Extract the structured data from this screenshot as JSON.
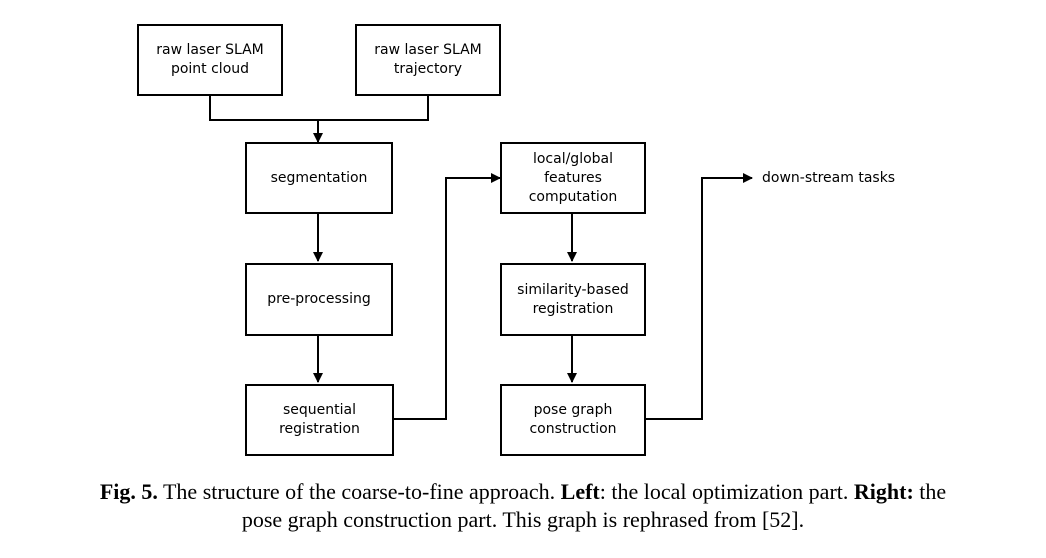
{
  "nodes": {
    "pc": "raw laser SLAM\npoint cloud",
    "traj": "raw laser SLAM\ntrajectory",
    "seg": "segmentation",
    "pre": "pre-processing",
    "seq": "sequential\nregistration",
    "feat": "local/global\nfeatures\ncomputation",
    "sim": "similarity-based\nregistration",
    "pose": "pose graph\nconstruction"
  },
  "output_label": "down-stream tasks",
  "caption": {
    "fig": "Fig. 5.",
    "text1": " The structure of the coarse-to-fine approach. ",
    "left_bold": "Left",
    "text2": ": the local optimization part. ",
    "right_bold": "Right:",
    "text3": " the",
    "line2": "pose graph construction part. This graph is rephrased from [52]."
  }
}
